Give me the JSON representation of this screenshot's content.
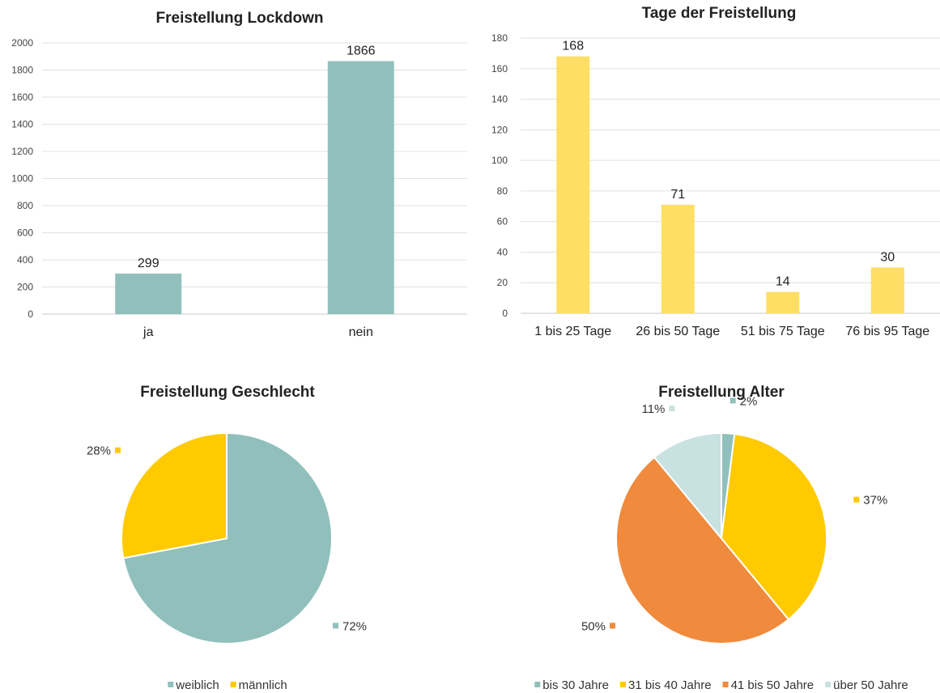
{
  "chart_data": [
    {
      "type": "bar",
      "title": "Freistellung Lockdown",
      "categories": [
        "ja",
        "nein"
      ],
      "values": [
        299,
        1866
      ],
      "ylim": [
        0,
        2000
      ],
      "yticks": [
        0,
        200,
        400,
        600,
        800,
        1000,
        1200,
        1400,
        1600,
        1800,
        2000
      ],
      "grid": true,
      "color": "#91C0BC"
    },
    {
      "type": "bar",
      "title": "Tage der Freistellung",
      "categories": [
        "1 bis 25 Tage",
        "26 bis 50 Tage",
        "51 bis 75 Tage",
        "76 bis 95 Tage"
      ],
      "values": [
        168,
        71,
        14,
        30
      ],
      "ylim": [
        0,
        180
      ],
      "yticks": [
        0,
        20,
        40,
        60,
        80,
        100,
        120,
        140,
        160,
        180
      ],
      "grid": true,
      "color": "#FFDE66"
    },
    {
      "type": "pie",
      "title": "Freistellung Geschlecht",
      "slices": [
        {
          "label": "weiblich",
          "value": 72,
          "text": "72%",
          "color": "#91C0BC"
        },
        {
          "label": "männlich",
          "value": 28,
          "text": "28%",
          "color": "#FFCA00"
        }
      ],
      "legend_position": "bottom"
    },
    {
      "type": "pie",
      "title": "Freistellung Alter",
      "slices": [
        {
          "label": "bis 30 Jahre",
          "value": 2,
          "text": "2%",
          "color": "#91C0BC"
        },
        {
          "label": "31 bis 40 Jahre",
          "value": 37,
          "text": "37%",
          "color": "#FFCA00"
        },
        {
          "label": "41 bis 50 Jahre",
          "value": 50,
          "text": "50%",
          "color": "#F08A3C"
        },
        {
          "label": "über 50 Jahre",
          "value": 11,
          "text": "11%",
          "color": "#C8E1E1"
        }
      ],
      "legend_position": "bottom"
    }
  ]
}
